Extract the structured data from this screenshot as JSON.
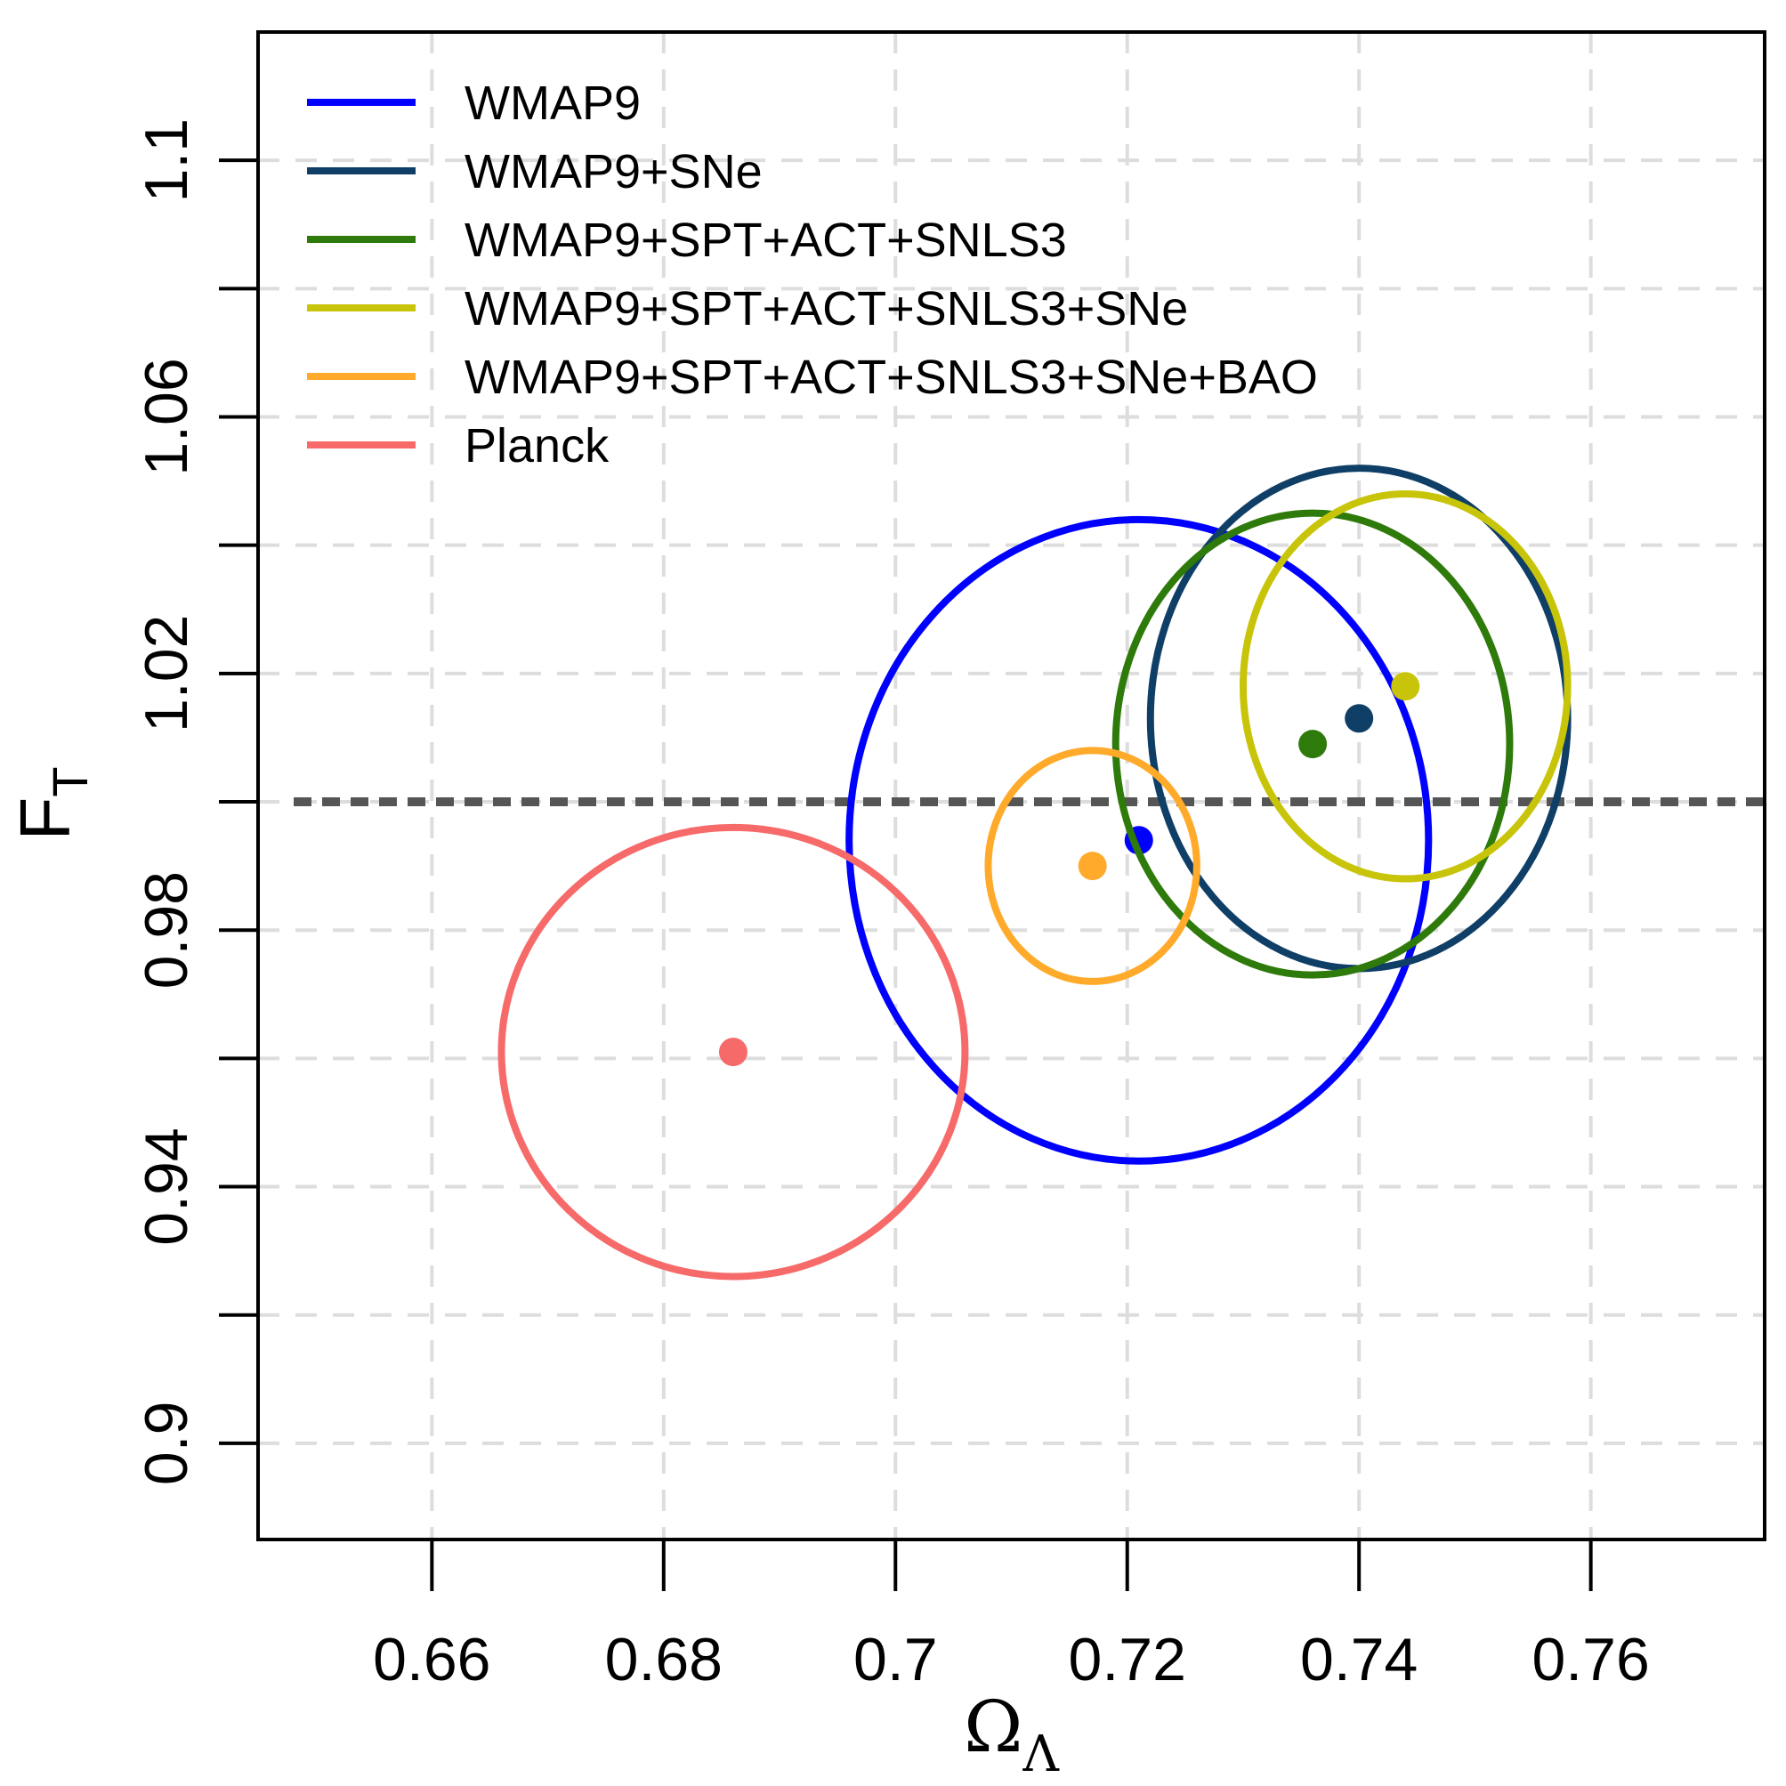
{
  "chart_data": {
    "type": "scatter",
    "title": "",
    "xlabel": {
      "main": "Ω",
      "sub": "Λ"
    },
    "ylabel": {
      "main": "F",
      "sub": "T"
    },
    "xlim": [
      0.645,
      0.775
    ],
    "ylim": [
      0.885,
      1.12
    ],
    "xticks": [
      {
        "value": 0.66,
        "label": "0.66"
      },
      {
        "value": 0.68,
        "label": "0.68"
      },
      {
        "value": 0.7,
        "label": "0.7"
      },
      {
        "value": 0.72,
        "label": "0.72"
      },
      {
        "value": 0.74,
        "label": "0.74"
      },
      {
        "value": 0.76,
        "label": "0.76"
      }
    ],
    "yticks": [
      {
        "value": 0.9,
        "label": "0.9"
      },
      {
        "value": 0.92,
        "label": ""
      },
      {
        "value": 0.94,
        "label": "0.94"
      },
      {
        "value": 0.96,
        "label": ""
      },
      {
        "value": 0.98,
        "label": "0.98"
      },
      {
        "value": 1.0,
        "label": ""
      },
      {
        "value": 1.02,
        "label": "1.02"
      },
      {
        "value": 1.04,
        "label": ""
      },
      {
        "value": 1.06,
        "label": "1.06"
      },
      {
        "value": 1.08,
        "label": ""
      },
      {
        "value": 1.1,
        "label": "1.1"
      }
    ],
    "grid": true,
    "reference_line": {
      "y": 1.0,
      "color": "#555555",
      "style": "dotted"
    },
    "legend_position": "top-left",
    "series": [
      {
        "name": "WMAP9",
        "color": "#0000ff",
        "center": [
          0.721,
          0.994
        ],
        "radius": [
          0.025,
          0.05
        ]
      },
      {
        "name": "WMAP9+SNe",
        "color": "#0f3e66",
        "center": [
          0.74,
          1.013
        ],
        "radius": [
          0.018,
          0.039
        ]
      },
      {
        "name": "WMAP9+SPT+ACT+SNLS3",
        "color": "#2e7a0a",
        "center": [
          0.736,
          1.009
        ],
        "radius": [
          0.017,
          0.036
        ]
      },
      {
        "name": "WMAP9+SPT+ACT+SNLS3+SNe",
        "color": "#c8c40a",
        "center": [
          0.744,
          1.018
        ],
        "radius": [
          0.014,
          0.03
        ]
      },
      {
        "name": "WMAP9+SPT+ACT+SNLS3+SNe+BAO",
        "color": "#ffaa2a",
        "center": [
          0.717,
          0.99
        ],
        "radius": [
          0.009,
          0.018
        ]
      },
      {
        "name": "Planck",
        "color": "#f76a6a",
        "center": [
          0.686,
          0.961
        ],
        "radius": [
          0.02,
          0.035
        ]
      }
    ]
  }
}
